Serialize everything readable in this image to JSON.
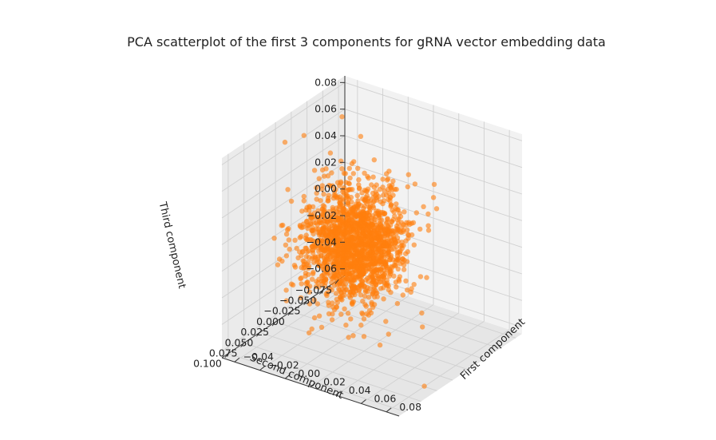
{
  "chart_data": {
    "type": "scatter",
    "projection": "3d",
    "title": "PCA scatterplot of the first 3 components for gRNA vector embedding data",
    "xlabel": "First component",
    "ylabel": "Second component",
    "zlabel": "Third component",
    "xticks": [
      "−0.04",
      "−0.02",
      "0.00",
      "0.02",
      "0.04",
      "0.06",
      "0.08"
    ],
    "yticks": [
      "−0.075",
      "−0.050",
      "−0.025",
      "0.000",
      "0.025",
      "0.050",
      "0.075",
      "0.100"
    ],
    "zticks": [
      "−0.06",
      "−0.04",
      "−0.02",
      "0.00",
      "0.02",
      "0.04",
      "0.06",
      "0.08"
    ],
    "xlim": [
      -0.05,
      0.09
    ],
    "ylim": [
      -0.085,
      0.11
    ],
    "zlim": [
      -0.065,
      0.085
    ],
    "grid": true,
    "point_color": "#ff7f0e",
    "point_alpha": 0.6,
    "series": [
      {
        "distribution": "dense central cluster",
        "center": [
          0.0,
          0.0,
          0.0
        ],
        "spread": [
          0.016,
          0.024,
          0.02
        ],
        "n_points": 1800
      }
    ],
    "outlier_points": [
      [
        0.085,
        0.06,
        -0.06
      ],
      [
        -0.045,
        0.02,
        0.07
      ],
      [
        -0.035,
        0.01,
        0.075
      ],
      [
        0.03,
        -0.07,
        0.015
      ],
      [
        0.03,
        -0.065,
        0.025
      ],
      [
        0.05,
        0.06,
        -0.04
      ],
      [
        -0.02,
        -0.05,
        0.06
      ],
      [
        0.04,
        0.07,
        -0.025
      ]
    ]
  }
}
